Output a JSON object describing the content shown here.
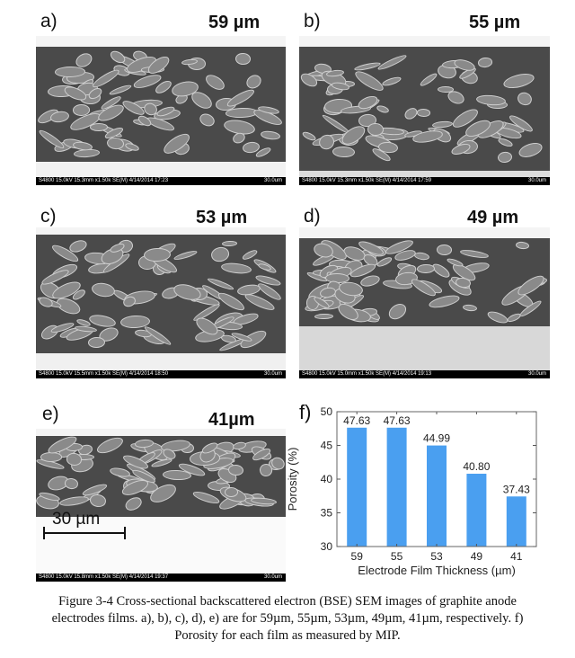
{
  "panels": [
    {
      "label": "a)",
      "thickness": "59 µm",
      "info": "S4800 15.0kV 15.3mm x1.50k SE(M) 4/14/2014 17:23",
      "scale": "30.0um"
    },
    {
      "label": "b)",
      "thickness": "55 µm",
      "info": "S4800 15.0kV 15.3mm x1.50k SE(M) 4/14/2014 17:59",
      "scale": "30.0um"
    },
    {
      "label": "c)",
      "thickness": "53 µm",
      "info": "S4800 15.0kV 15.5mm x1.50k SE(M) 4/14/2014 18:50",
      "scale": "30.0um"
    },
    {
      "label": "d)",
      "thickness": "49 µm",
      "info": "S4800 15.0kV 15.0mm x1.50k SE(M) 4/14/2014 19:13",
      "scale": "30.0um"
    },
    {
      "label": "e)",
      "thickness": "41µm",
      "info": "S4800 15.0kV 15.8mm x1.50k SE(M) 4/14/2014 19:37",
      "scale": "30.0um",
      "scalebar": "30 µm"
    }
  ],
  "chart_data": {
    "type": "bar",
    "panel_label": "f)",
    "categories": [
      "59",
      "55",
      "53",
      "49",
      "41"
    ],
    "values": [
      47.63,
      47.63,
      44.99,
      40.8,
      37.43
    ],
    "data_labels": [
      "47.63",
      "47.63",
      "44.99",
      "40.80",
      "37.43"
    ],
    "xlabel": "Electrode Film Thickness (µm)",
    "ylabel": "Porosity (%)",
    "ylim": [
      30,
      50
    ],
    "yticks": [
      30,
      35,
      40,
      45,
      50
    ],
    "grid": false,
    "bar_color": "#4a9ff0"
  },
  "caption": {
    "line1": "Figure 3-4 Cross-sectional backscattered electron (BSE) SEM images of graphite anode",
    "line2": "electrodes films. a), b), c), d), e) are for 59µm, 55µm, 53µm, 49µm, 41µm, respectively. f)",
    "line3": "Porosity for each film as measured by MIP."
  }
}
